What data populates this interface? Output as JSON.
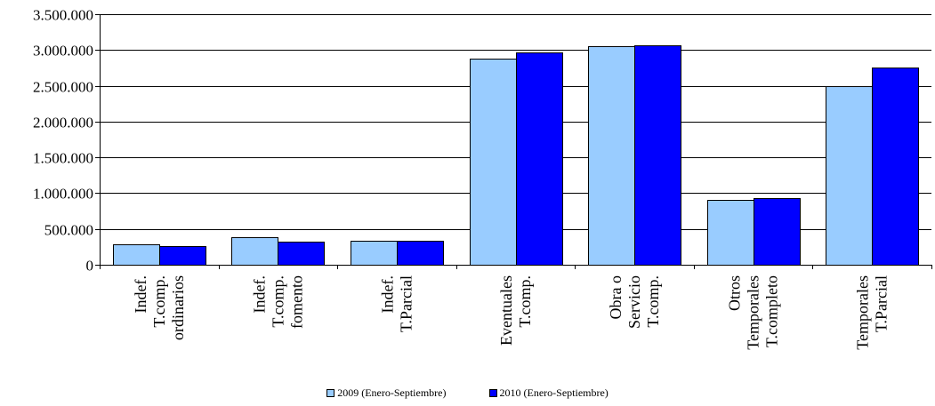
{
  "chart_data": {
    "type": "bar",
    "categories": [
      [
        "Indef.",
        "T.comp.",
        "ordinarios"
      ],
      [
        "Indef.",
        "T.comp.",
        "fomento"
      ],
      [
        "Indef.",
        "T.Parcial"
      ],
      [
        "Eventuales",
        "T.comp."
      ],
      [
        "Obra o",
        "Servicio",
        "T.comp."
      ],
      [
        "Otros",
        "Temporales",
        "T.completo"
      ],
      [
        "Temporales",
        "T.Parcial"
      ]
    ],
    "series": [
      {
        "name": "2009 (Enero-Septiembre)",
        "color": "#99ccff",
        "values": [
          280000,
          390000,
          340000,
          2880000,
          3050000,
          910000,
          2500000
        ]
      },
      {
        "name": "2010 (Enero-Septiembre)",
        "color": "#0000ff",
        "values": [
          265000,
          325000,
          330000,
          2970000,
          3070000,
          935000,
          2750000
        ]
      }
    ],
    "title": "",
    "xlabel": "",
    "ylabel": "",
    "ylim": [
      0,
      3500000
    ],
    "yticks": [
      0,
      500000,
      1000000,
      1500000,
      2000000,
      2500000,
      3000000,
      3500000
    ],
    "ytick_labels": [
      "0",
      "500.000",
      "1.000.000",
      "1.500.000",
      "2.000.000",
      "2.500.000",
      "3.000.000",
      "3.500.000"
    ],
    "grid": true,
    "legend_position": "bottom"
  }
}
